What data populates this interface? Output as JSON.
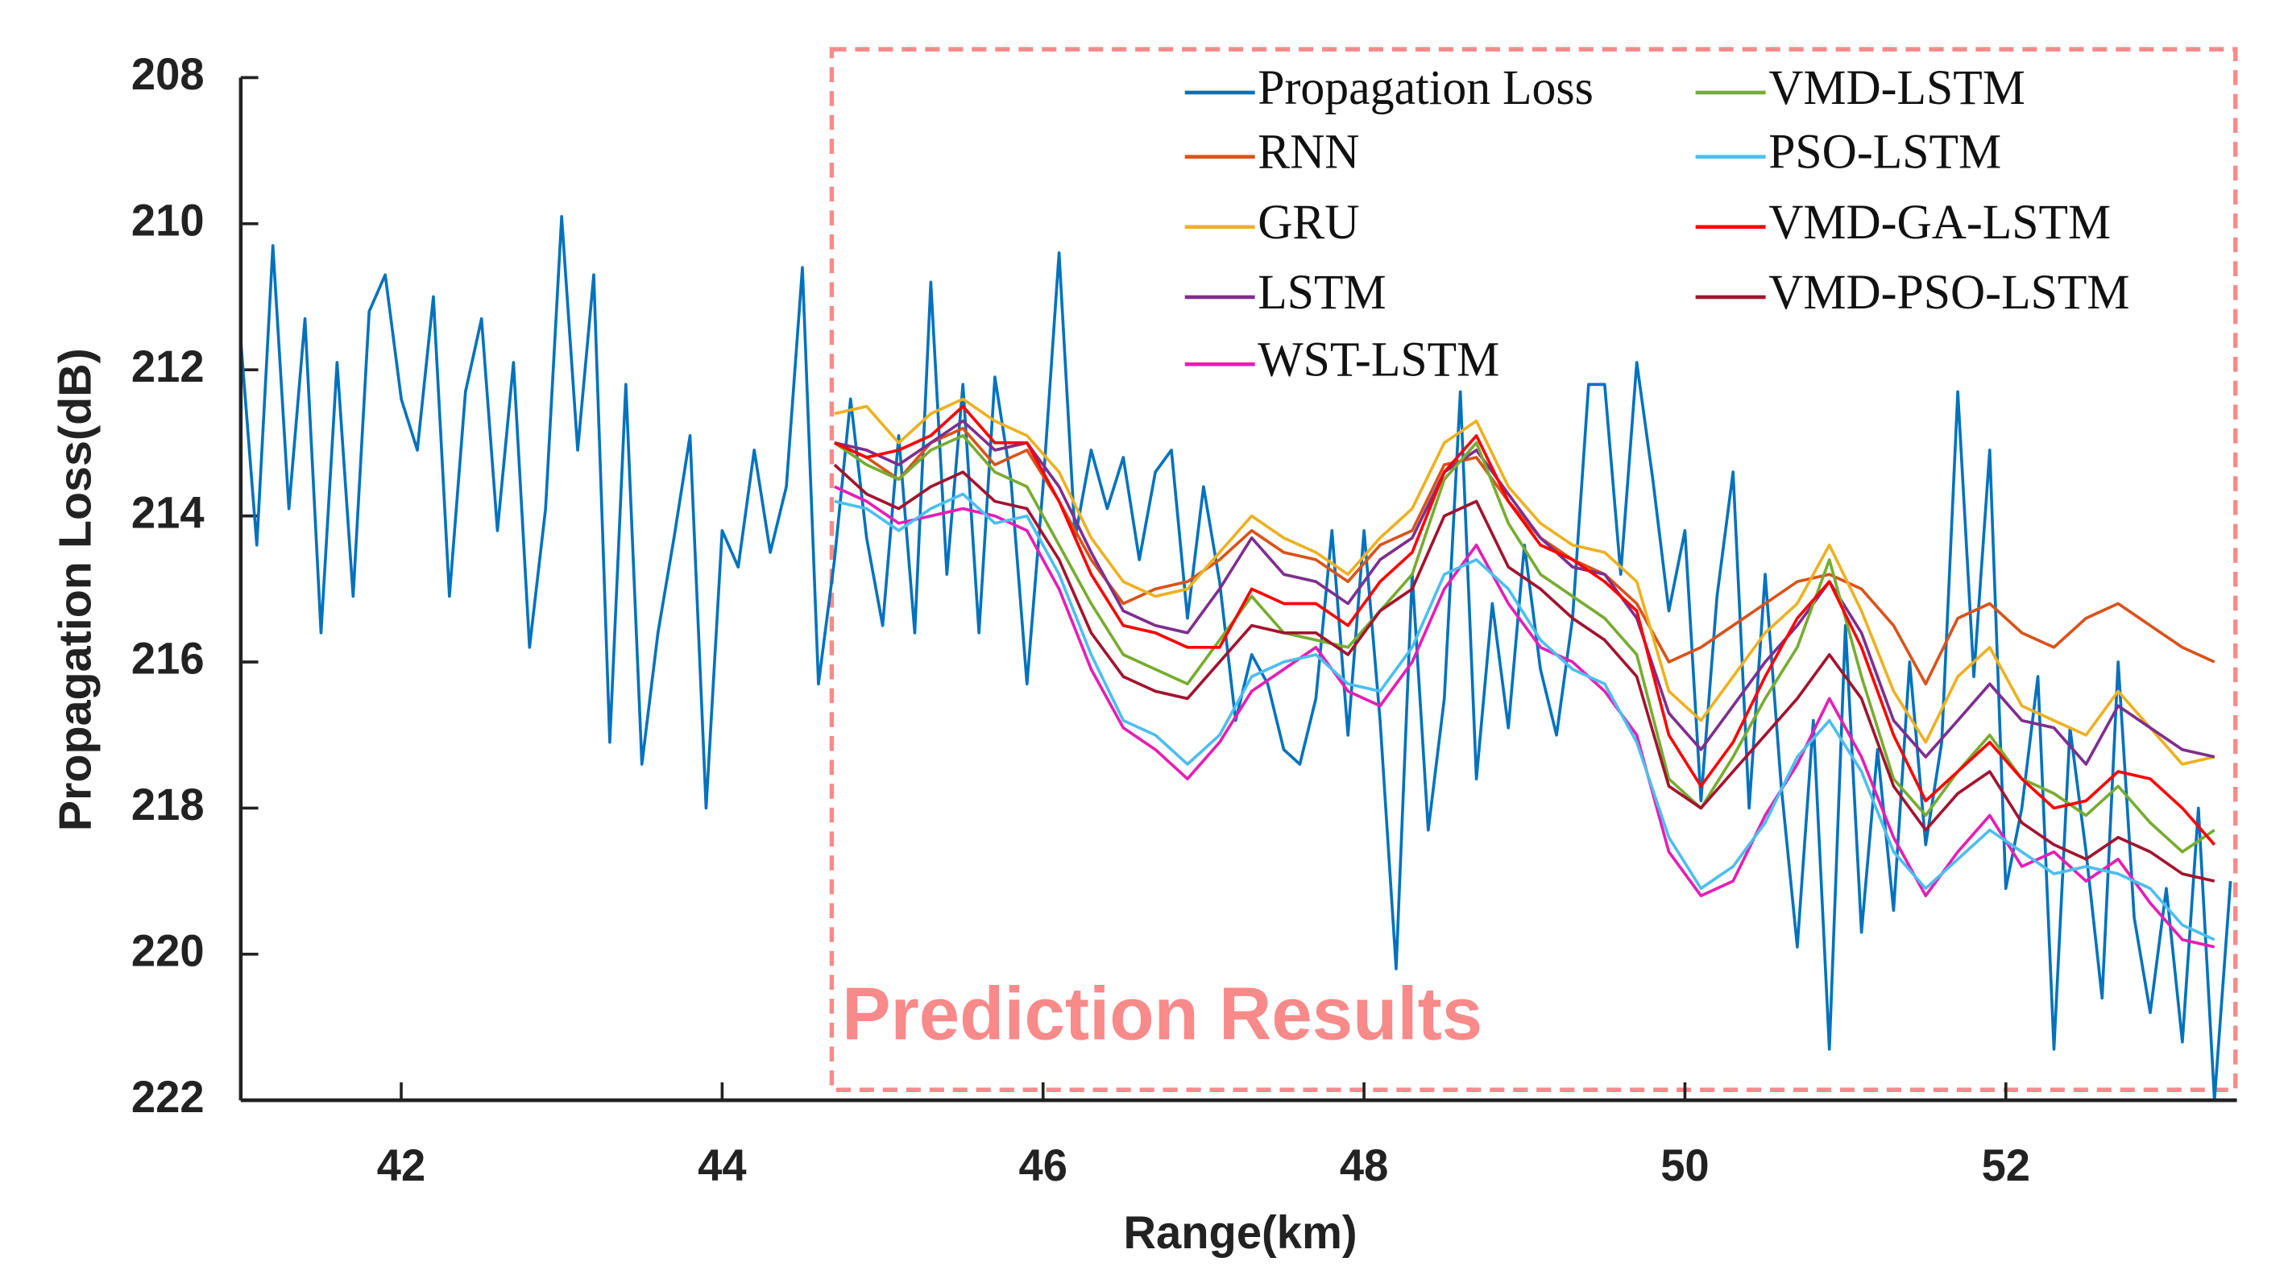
{
  "chart_data": {
    "type": "line",
    "xlabel": "Range(km)",
    "ylabel": "Propagation Loss(dB)",
    "annotation": "Prediction Results",
    "xlim": [
      41,
      53.44
    ],
    "xticks": [
      42,
      44,
      46,
      48,
      50,
      52
    ],
    "ylim": [
      222,
      208
    ],
    "yticks": [
      208,
      210,
      212,
      214,
      216,
      218,
      220,
      222
    ],
    "legend": "upper right",
    "series": [
      {
        "name": "Propagation Loss",
        "color": "#0072BD",
        "x": [
          41,
          41.1,
          41.2,
          41.3,
          41.4,
          41.5,
          41.6,
          41.7,
          41.8,
          41.9,
          42,
          42.1,
          42.2,
          42.3,
          42.4,
          42.5,
          42.6,
          42.7,
          42.8,
          42.9,
          43,
          43.1,
          43.2,
          43.3,
          43.4,
          43.5,
          43.6,
          43.7,
          43.8,
          43.9,
          44,
          44.1,
          44.2,
          44.3,
          44.4,
          44.5,
          44.6,
          44.7,
          44.8,
          44.9,
          45,
          45.1,
          45.2,
          45.3,
          45.4,
          45.5,
          45.6,
          45.7,
          45.8,
          45.9,
          46,
          46.1,
          46.2,
          46.3,
          46.4,
          46.5,
          46.6,
          46.7,
          46.8,
          46.9,
          47,
          47.1,
          47.2,
          47.3,
          47.4,
          47.5,
          47.6,
          47.7,
          47.8,
          47.9,
          48,
          48.1,
          48.2,
          48.3,
          48.4,
          48.5,
          48.6,
          48.7,
          48.8,
          48.9,
          49,
          49.1,
          49.2,
          49.3,
          49.4,
          49.5,
          49.6,
          49.7,
          49.8,
          49.9,
          50,
          50.1,
          50.2,
          50.3,
          50.4,
          50.5,
          50.6,
          50.7,
          50.8,
          50.9,
          51,
          51.1,
          51.2,
          51.3,
          51.4,
          51.5,
          51.6,
          51.7,
          51.8,
          51.9,
          52,
          52.1,
          52.2,
          52.3,
          52.4,
          52.5,
          52.6,
          52.7,
          52.8,
          52.9,
          53,
          53.1,
          53.2,
          53.3,
          53.4
        ],
        "values": [
          211.6,
          214.4,
          210.3,
          213.9,
          211.3,
          215.6,
          211.9,
          215.1,
          211.2,
          210.7,
          212.4,
          213.1,
          211.0,
          215.1,
          212.3,
          211.3,
          214.2,
          211.9,
          215.8,
          213.9,
          209.9,
          213.1,
          210.7,
          217.1,
          212.2,
          217.4,
          215.6,
          214.3,
          212.9,
          218.0,
          214.2,
          214.7,
          213.1,
          214.5,
          213.6,
          210.6,
          216.3,
          214.6,
          212.4,
          214.3,
          215.5,
          212.9,
          215.6,
          210.8,
          214.8,
          212.2,
          215.6,
          212.1,
          213.5,
          216.3,
          213.6,
          210.4,
          214.3,
          213.1,
          213.9,
          213.2,
          214.6,
          213.4,
          213.1,
          215.4,
          213.6,
          214.9,
          216.8,
          215.9,
          216.3,
          217.2,
          217.4,
          216.5,
          214.2,
          217.0,
          214.2,
          216.8,
          220.2,
          214.8,
          218.3,
          216.5,
          212.3,
          217.6,
          215.2,
          216.9,
          214.4,
          216.1,
          217.0,
          215.4,
          212.2,
          212.2,
          214.8,
          211.9,
          213.5,
          215.3,
          214.2,
          217.9,
          215.1,
          213.4,
          218.0,
          214.8,
          217.7,
          219.9,
          216.8,
          221.3,
          215.5,
          219.7,
          217.2,
          219.4,
          216.0,
          218.5,
          217.1,
          212.3,
          216.2,
          213.1,
          219.1,
          218.0,
          216.2,
          221.3,
          216.9,
          218.6,
          220.6,
          216.0,
          219.5,
          220.8,
          219.1,
          221.2,
          218.0,
          222.0,
          219.0
        ]
      },
      {
        "name": "RNN",
        "color": "#D95319",
        "x": [
          44.7,
          44.9,
          45.1,
          45.3,
          45.5,
          45.7,
          45.9,
          46.1,
          46.3,
          46.5,
          46.7,
          46.9,
          47.1,
          47.3,
          47.5,
          47.7,
          47.9,
          48.1,
          48.3,
          48.5,
          48.7,
          48.9,
          49.1,
          49.3,
          49.5,
          49.7,
          49.9,
          50.1,
          50.3,
          50.5,
          50.7,
          50.9,
          51.1,
          51.3,
          51.5,
          51.7,
          51.9,
          52.1,
          52.3,
          52.5,
          52.7,
          52.9,
          53.1,
          53.3
        ],
        "values": [
          213.0,
          213.2,
          213.5,
          213.0,
          212.8,
          213.3,
          213.1,
          213.8,
          214.6,
          215.2,
          215.0,
          214.9,
          214.6,
          214.2,
          214.5,
          214.6,
          214.9,
          214.4,
          214.2,
          213.3,
          213.2,
          213.8,
          214.3,
          214.6,
          214.8,
          215.2,
          216.0,
          215.8,
          215.5,
          215.2,
          214.9,
          214.8,
          215.0,
          215.5,
          216.3,
          215.4,
          215.2,
          215.6,
          215.8,
          215.4,
          215.2,
          215.5,
          215.8,
          216.0
        ]
      },
      {
        "name": "GRU",
        "color": "#EDB120",
        "x": [
          44.7,
          44.9,
          45.1,
          45.3,
          45.5,
          45.7,
          45.9,
          46.1,
          46.3,
          46.5,
          46.7,
          46.9,
          47.1,
          47.3,
          47.5,
          47.7,
          47.9,
          48.1,
          48.3,
          48.5,
          48.7,
          48.9,
          49.1,
          49.3,
          49.5,
          49.7,
          49.9,
          50.1,
          50.3,
          50.5,
          50.7,
          50.9,
          51.1,
          51.3,
          51.5,
          51.7,
          51.9,
          52.1,
          52.3,
          52.5,
          52.7,
          52.9,
          53.1,
          53.3
        ],
        "values": [
          212.6,
          212.5,
          213.0,
          212.6,
          212.4,
          212.7,
          212.9,
          213.4,
          214.3,
          214.9,
          215.1,
          215.0,
          214.5,
          214.0,
          214.3,
          214.5,
          214.8,
          214.3,
          213.9,
          213.0,
          212.7,
          213.6,
          214.1,
          214.4,
          214.5,
          214.9,
          216.4,
          216.8,
          216.2,
          215.6,
          215.2,
          214.4,
          215.3,
          216.4,
          217.1,
          216.2,
          215.8,
          216.6,
          216.8,
          217.0,
          216.4,
          216.9,
          217.4,
          217.3
        ]
      },
      {
        "name": "LSTM",
        "color": "#7E2F8E",
        "x": [
          44.7,
          44.9,
          45.1,
          45.3,
          45.5,
          45.7,
          45.9,
          46.1,
          46.3,
          46.5,
          46.7,
          46.9,
          47.1,
          47.3,
          47.5,
          47.7,
          47.9,
          48.1,
          48.3,
          48.5,
          48.7,
          48.9,
          49.1,
          49.3,
          49.5,
          49.7,
          49.9,
          50.1,
          50.3,
          50.5,
          50.7,
          50.9,
          51.1,
          51.3,
          51.5,
          51.7,
          51.9,
          52.1,
          52.3,
          52.5,
          52.7,
          52.9,
          53.1,
          53.3
        ],
        "values": [
          213.0,
          213.1,
          213.3,
          213.0,
          212.7,
          213.1,
          213.0,
          213.6,
          214.5,
          215.3,
          215.5,
          215.6,
          215.0,
          214.3,
          214.8,
          214.9,
          215.2,
          214.6,
          214.3,
          213.4,
          213.1,
          213.7,
          214.3,
          214.7,
          214.8,
          215.4,
          216.7,
          217.2,
          216.6,
          216.0,
          215.5,
          214.9,
          215.6,
          216.8,
          217.3,
          216.8,
          216.3,
          216.8,
          216.9,
          217.4,
          216.6,
          216.9,
          217.2,
          217.3
        ]
      },
      {
        "name": "WST-LSTM",
        "color": "#E61EB4",
        "x": [
          44.7,
          44.9,
          45.1,
          45.3,
          45.5,
          45.7,
          45.9,
          46.1,
          46.3,
          46.5,
          46.7,
          46.9,
          47.1,
          47.3,
          47.5,
          47.7,
          47.9,
          48.1,
          48.3,
          48.5,
          48.7,
          48.9,
          49.1,
          49.3,
          49.5,
          49.7,
          49.9,
          50.1,
          50.3,
          50.5,
          50.7,
          50.9,
          51.1,
          51.3,
          51.5,
          51.7,
          51.9,
          52.1,
          52.3,
          52.5,
          52.7,
          52.9,
          53.1,
          53.3
        ],
        "values": [
          213.6,
          213.8,
          214.1,
          214.0,
          213.9,
          214.0,
          214.2,
          215.0,
          216.1,
          216.9,
          217.2,
          217.6,
          217.1,
          216.4,
          216.1,
          215.8,
          216.4,
          216.6,
          216.0,
          215.0,
          214.4,
          215.2,
          215.8,
          216.0,
          216.4,
          217.0,
          218.6,
          219.2,
          219.0,
          218.1,
          217.4,
          216.5,
          217.3,
          218.4,
          219.2,
          218.6,
          218.1,
          218.8,
          218.6,
          219.0,
          218.7,
          219.3,
          219.8,
          219.9
        ]
      },
      {
        "name": "VMD-LSTM",
        "color": "#77AC30",
        "x": [
          44.7,
          44.9,
          45.1,
          45.3,
          45.5,
          45.7,
          45.9,
          46.1,
          46.3,
          46.5,
          46.7,
          46.9,
          47.1,
          47.3,
          47.5,
          47.7,
          47.9,
          48.1,
          48.3,
          48.5,
          48.7,
          48.9,
          49.1,
          49.3,
          49.5,
          49.7,
          49.9,
          50.1,
          50.3,
          50.5,
          50.7,
          50.9,
          51.1,
          51.3,
          51.5,
          51.7,
          51.9,
          52.1,
          52.3,
          52.5,
          52.7,
          52.9,
          53.1,
          53.3
        ],
        "values": [
          213.0,
          213.3,
          213.5,
          213.1,
          212.9,
          213.4,
          213.6,
          214.4,
          215.2,
          215.9,
          216.1,
          216.3,
          215.7,
          215.1,
          215.6,
          215.7,
          215.8,
          215.3,
          214.8,
          213.5,
          213.0,
          214.1,
          214.8,
          215.1,
          215.4,
          215.9,
          217.6,
          218.0,
          217.3,
          216.5,
          215.8,
          214.6,
          216.2,
          217.6,
          218.1,
          217.5,
          217.0,
          217.6,
          217.8,
          218.1,
          217.7,
          218.2,
          218.6,
          218.3
        ]
      },
      {
        "name": "PSO-LSTM",
        "color": "#4DBEEE",
        "x": [
          44.7,
          44.9,
          45.1,
          45.3,
          45.5,
          45.7,
          45.9,
          46.1,
          46.3,
          46.5,
          46.7,
          46.9,
          47.1,
          47.3,
          47.5,
          47.7,
          47.9,
          48.1,
          48.3,
          48.5,
          48.7,
          48.9,
          49.1,
          49.3,
          49.5,
          49.7,
          49.9,
          50.1,
          50.3,
          50.5,
          50.7,
          50.9,
          51.1,
          51.3,
          51.5,
          51.7,
          51.9,
          52.1,
          52.3,
          52.5,
          52.7,
          52.9,
          53.1,
          53.3
        ],
        "values": [
          213.8,
          213.9,
          214.2,
          213.9,
          213.7,
          214.1,
          214.0,
          214.8,
          215.9,
          216.8,
          217.0,
          217.4,
          217.0,
          216.2,
          216.0,
          215.9,
          216.3,
          216.4,
          215.8,
          214.8,
          214.6,
          215.0,
          215.7,
          216.1,
          216.3,
          217.1,
          218.4,
          219.1,
          218.8,
          218.2,
          217.3,
          216.8,
          217.5,
          218.6,
          219.1,
          218.7,
          218.3,
          218.6,
          218.9,
          218.8,
          218.9,
          219.1,
          219.6,
          219.8
        ]
      },
      {
        "name": "VMD-GA-LSTM",
        "color": "#FF0000",
        "x": [
          44.7,
          44.9,
          45.1,
          45.3,
          45.5,
          45.7,
          45.9,
          46.1,
          46.3,
          46.5,
          46.7,
          46.9,
          47.1,
          47.3,
          47.5,
          47.7,
          47.9,
          48.1,
          48.3,
          48.5,
          48.7,
          48.9,
          49.1,
          49.3,
          49.5,
          49.7,
          49.9,
          50.1,
          50.3,
          50.5,
          50.7,
          50.9,
          51.1,
          51.3,
          51.5,
          51.7,
          51.9,
          52.1,
          52.3,
          52.5,
          52.7,
          52.9,
          53.1,
          53.3
        ],
        "values": [
          213.0,
          213.2,
          213.1,
          212.9,
          212.5,
          213.0,
          213.0,
          213.8,
          214.8,
          215.5,
          215.6,
          215.8,
          215.8,
          215.0,
          215.2,
          215.2,
          215.5,
          214.9,
          214.5,
          213.4,
          212.9,
          213.8,
          214.4,
          214.6,
          214.9,
          215.3,
          217.0,
          217.7,
          217.1,
          216.2,
          215.4,
          214.9,
          215.8,
          217.0,
          217.9,
          217.5,
          217.1,
          217.6,
          218.0,
          217.9,
          217.5,
          217.6,
          218.0,
          218.5
        ]
      },
      {
        "name": "VMD-PSO-LSTM",
        "color": "#A2142F",
        "x": [
          44.7,
          44.9,
          45.1,
          45.3,
          45.5,
          45.7,
          45.9,
          46.1,
          46.3,
          46.5,
          46.7,
          46.9,
          47.1,
          47.3,
          47.5,
          47.7,
          47.9,
          48.1,
          48.3,
          48.5,
          48.7,
          48.9,
          49.1,
          49.3,
          49.5,
          49.7,
          49.9,
          50.1,
          50.3,
          50.5,
          50.7,
          50.9,
          51.1,
          51.3,
          51.5,
          51.7,
          51.9,
          52.1,
          52.3,
          52.5,
          52.7,
          52.9,
          53.1,
          53.3
        ],
        "values": [
          213.3,
          213.7,
          213.9,
          213.6,
          213.4,
          213.8,
          213.9,
          214.6,
          215.6,
          216.2,
          216.4,
          216.5,
          216.0,
          215.5,
          215.6,
          215.6,
          215.9,
          215.3,
          215.0,
          214.0,
          213.8,
          214.7,
          215.0,
          215.4,
          215.7,
          216.2,
          217.7,
          218.0,
          217.5,
          217.0,
          216.5,
          215.9,
          216.5,
          217.7,
          218.3,
          217.8,
          217.5,
          218.2,
          218.5,
          218.7,
          218.4,
          218.6,
          218.9,
          219.0
        ]
      }
    ]
  }
}
